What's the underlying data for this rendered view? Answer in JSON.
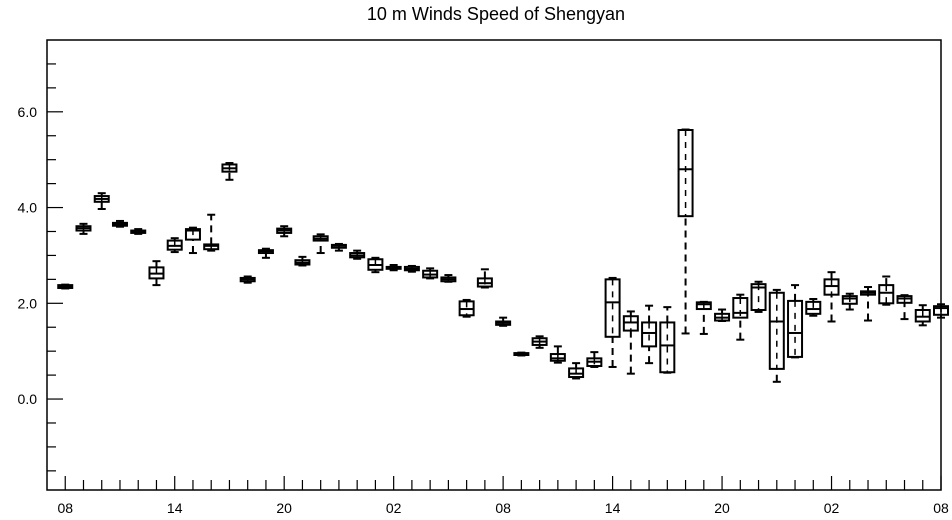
{
  "chart_data": {
    "type": "box",
    "title": "10 m Winds Speed of Shengyan",
    "xlabel": "",
    "ylabel": "",
    "ylim": [
      -1.9,
      7.5
    ],
    "yticks": [
      {
        "value": 0,
        "label": "0.0"
      },
      {
        "value": 2,
        "label": "2.0"
      },
      {
        "value": 4,
        "label": "4.0"
      },
      {
        "value": 6,
        "label": "6.0"
      }
    ],
    "xlim": [
      -1,
      48
    ],
    "xticks": [
      {
        "value": 0,
        "label": "08"
      },
      {
        "value": 6,
        "label": "14"
      },
      {
        "value": 12,
        "label": "20"
      },
      {
        "value": 18,
        "label": "02"
      },
      {
        "value": 24,
        "label": "08"
      },
      {
        "value": 30,
        "label": "14"
      },
      {
        "value": 36,
        "label": "20"
      },
      {
        "value": 42,
        "label": "02"
      },
      {
        "value": 48,
        "label": "08"
      }
    ],
    "boxes": [
      {
        "x": 0,
        "min": 2.31,
        "q1": 2.32,
        "median": 2.35,
        "q3": 2.38,
        "max": 2.39
      },
      {
        "x": 1,
        "min": 3.45,
        "q1": 3.52,
        "median": 3.57,
        "q3": 3.61,
        "max": 3.66
      },
      {
        "x": 2,
        "min": 3.97,
        "q1": 4.12,
        "median": 4.18,
        "q3": 4.24,
        "max": 4.3
      },
      {
        "x": 3,
        "min": 3.6,
        "q1": 3.62,
        "median": 3.65,
        "q3": 3.68,
        "max": 3.72
      },
      {
        "x": 4,
        "min": 3.45,
        "q1": 3.47,
        "median": 3.5,
        "q3": 3.52,
        "max": 3.55
      },
      {
        "x": 5,
        "min": 2.38,
        "q1": 2.52,
        "median": 2.62,
        "q3": 2.75,
        "max": 2.88
      },
      {
        "x": 6,
        "min": 3.07,
        "q1": 3.12,
        "median": 3.2,
        "q3": 3.31,
        "max": 3.36
      },
      {
        "x": 7,
        "min": 3.05,
        "q1": 3.33,
        "median": 3.52,
        "q3": 3.55,
        "max": 3.58
      },
      {
        "x": 8,
        "min": 3.1,
        "q1": 3.13,
        "median": 3.2,
        "q3": 3.23,
        "max": 3.85
      },
      {
        "x": 9,
        "min": 4.58,
        "q1": 4.75,
        "median": 4.82,
        "q3": 4.9,
        "max": 4.93
      },
      {
        "x": 10,
        "min": 2.43,
        "q1": 2.46,
        "median": 2.5,
        "q3": 2.53,
        "max": 2.56
      },
      {
        "x": 11,
        "min": 2.95,
        "q1": 3.05,
        "median": 3.09,
        "q3": 3.11,
        "max": 3.14
      },
      {
        "x": 12,
        "min": 3.4,
        "q1": 3.47,
        "median": 3.52,
        "q3": 3.56,
        "max": 3.61
      },
      {
        "x": 13,
        "min": 2.79,
        "q1": 2.81,
        "median": 2.85,
        "q3": 2.9,
        "max": 2.97
      },
      {
        "x": 14,
        "min": 3.05,
        "q1": 3.31,
        "median": 3.35,
        "q3": 3.4,
        "max": 3.44
      },
      {
        "x": 15,
        "min": 3.1,
        "q1": 3.16,
        "median": 3.2,
        "q3": 3.22,
        "max": 3.24
      },
      {
        "x": 16,
        "min": 2.93,
        "q1": 2.96,
        "median": 3.0,
        "q3": 3.05,
        "max": 3.1
      },
      {
        "x": 17,
        "min": 2.65,
        "q1": 2.7,
        "median": 2.8,
        "q3": 2.92,
        "max": 2.95
      },
      {
        "x": 18,
        "min": 2.69,
        "q1": 2.72,
        "median": 2.74,
        "q3": 2.76,
        "max": 2.8
      },
      {
        "x": 19,
        "min": 2.66,
        "q1": 2.69,
        "median": 2.72,
        "q3": 2.76,
        "max": 2.78
      },
      {
        "x": 20,
        "min": 2.52,
        "q1": 2.54,
        "median": 2.6,
        "q3": 2.68,
        "max": 2.73
      },
      {
        "x": 21,
        "min": 2.45,
        "q1": 2.46,
        "median": 2.5,
        "q3": 2.54,
        "max": 2.59
      },
      {
        "x": 22,
        "min": 1.72,
        "q1": 1.75,
        "median": 1.88,
        "q3": 2.04,
        "max": 2.07
      },
      {
        "x": 23,
        "min": 2.33,
        "q1": 2.35,
        "median": 2.42,
        "q3": 2.52,
        "max": 2.71
      },
      {
        "x": 24,
        "min": 1.53,
        "q1": 1.55,
        "median": 1.59,
        "q3": 1.62,
        "max": 1.7
      },
      {
        "x": 25,
        "min": 0.91,
        "q1": 0.92,
        "median": 0.94,
        "q3": 0.96,
        "max": 0.97
      },
      {
        "x": 26,
        "min": 1.07,
        "q1": 1.13,
        "median": 1.2,
        "q3": 1.27,
        "max": 1.31
      },
      {
        "x": 27,
        "min": 0.76,
        "q1": 0.8,
        "median": 0.85,
        "q3": 0.94,
        "max": 1.1
      },
      {
        "x": 28,
        "min": 0.43,
        "q1": 0.46,
        "median": 0.53,
        "q3": 0.64,
        "max": 0.75
      },
      {
        "x": 29,
        "min": 0.67,
        "q1": 0.69,
        "median": 0.78,
        "q3": 0.85,
        "max": 0.98
      },
      {
        "x": 30,
        "min": 0.67,
        "q1": 1.3,
        "median": 2.02,
        "q3": 2.5,
        "max": 2.53
      },
      {
        "x": 31,
        "min": 0.53,
        "q1": 1.43,
        "median": 1.6,
        "q3": 1.73,
        "max": 1.83
      },
      {
        "x": 32,
        "min": 0.75,
        "q1": 1.1,
        "median": 1.38,
        "q3": 1.6,
        "max": 1.95
      },
      {
        "x": 33,
        "min": 0.55,
        "q1": 0.56,
        "median": 1.12,
        "q3": 1.6,
        "max": 1.92
      },
      {
        "x": 34,
        "min": 1.37,
        "q1": 3.82,
        "median": 4.8,
        "q3": 5.62,
        "max": 5.63
      },
      {
        "x": 35,
        "min": 1.36,
        "q1": 1.88,
        "median": 1.98,
        "q3": 2.02,
        "max": 2.03
      },
      {
        "x": 36,
        "min": 1.63,
        "q1": 1.64,
        "median": 1.7,
        "q3": 1.78,
        "max": 1.87
      },
      {
        "x": 37,
        "min": 1.24,
        "q1": 1.7,
        "median": 1.8,
        "q3": 2.11,
        "max": 2.18
      },
      {
        "x": 38,
        "min": 1.82,
        "q1": 1.86,
        "median": 2.33,
        "q3": 2.4,
        "max": 2.45
      },
      {
        "x": 39,
        "min": 0.36,
        "q1": 0.63,
        "median": 1.62,
        "q3": 2.22,
        "max": 2.28
      },
      {
        "x": 40,
        "min": 0.87,
        "q1": 0.88,
        "median": 1.38,
        "q3": 2.05,
        "max": 2.38
      },
      {
        "x": 41,
        "min": 1.74,
        "q1": 1.78,
        "median": 1.88,
        "q3": 2.03,
        "max": 2.09
      },
      {
        "x": 42,
        "min": 1.62,
        "q1": 2.18,
        "median": 2.36,
        "q3": 2.5,
        "max": 2.65
      },
      {
        "x": 43,
        "min": 1.87,
        "q1": 1.99,
        "median": 2.1,
        "q3": 2.15,
        "max": 2.2
      },
      {
        "x": 44,
        "min": 1.64,
        "q1": 2.18,
        "median": 2.22,
        "q3": 2.25,
        "max": 2.34
      },
      {
        "x": 45,
        "min": 1.97,
        "q1": 2.0,
        "median": 2.22,
        "q3": 2.38,
        "max": 2.56
      },
      {
        "x": 46,
        "min": 1.67,
        "q1": 2.01,
        "median": 2.1,
        "q3": 2.15,
        "max": 2.17
      },
      {
        "x": 47,
        "min": 1.54,
        "q1": 1.62,
        "median": 1.72,
        "q3": 1.86,
        "max": 1.96
      },
      {
        "x": 48,
        "min": 1.7,
        "q1": 1.76,
        "median": 1.9,
        "q3": 1.94,
        "max": 1.98
      }
    ]
  }
}
